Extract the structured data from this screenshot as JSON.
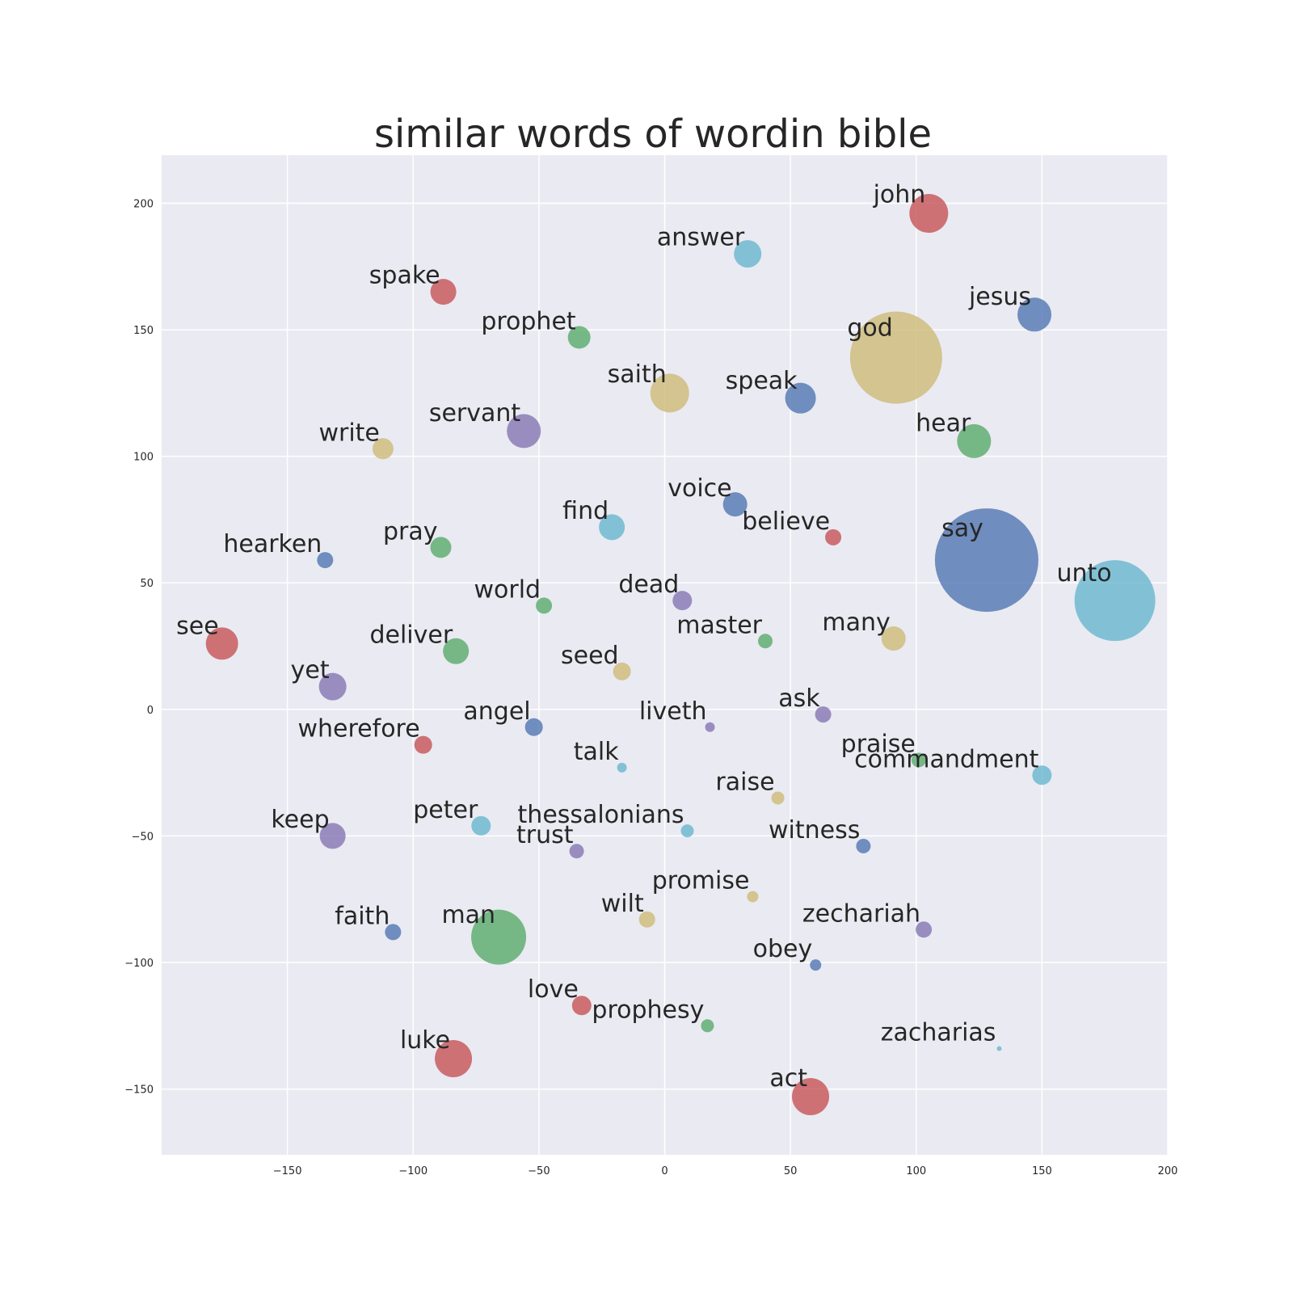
{
  "chart_data": {
    "type": "scatter",
    "title": "similar words of wordin bible",
    "xlabel": "",
    "ylabel": "",
    "xlim": [
      -200,
      200
    ],
    "ylim": [
      -176,
      219
    ],
    "xticks": [
      -150,
      -100,
      -50,
      0,
      50,
      100,
      150,
      200
    ],
    "yticks": [
      -150,
      -100,
      -50,
      0,
      50,
      100,
      150,
      200
    ],
    "xtick_labels": [
      "−150",
      "−100",
      "−50",
      "0",
      "50",
      "100",
      "150",
      "200"
    ],
    "ytick_labels": [
      "−150",
      "−100",
      "−50",
      "0",
      "50",
      "100",
      "150",
      "200"
    ],
    "grid": true,
    "background": "#eaeaf2",
    "palette": {
      "blue": "#4c72b0",
      "green": "#55a868",
      "red": "#c44e52",
      "purple": "#8172b2",
      "gold": "#ccb974",
      "cyan": "#64b5cd"
    },
    "size_unit": "relative marker radius",
    "points": [
      {
        "word": "john",
        "x": 105,
        "y": 196,
        "size": 24,
        "color": "red"
      },
      {
        "word": "answer",
        "x": 33,
        "y": 180,
        "size": 17,
        "color": "cyan"
      },
      {
        "word": "spake",
        "x": -88,
        "y": 165,
        "size": 16,
        "color": "red"
      },
      {
        "word": "jesus",
        "x": 147,
        "y": 156,
        "size": 21,
        "color": "blue"
      },
      {
        "word": "prophet",
        "x": -34,
        "y": 147,
        "size": 14,
        "color": "green"
      },
      {
        "word": "god",
        "x": 92,
        "y": 139,
        "size": 57,
        "color": "gold"
      },
      {
        "word": "saith",
        "x": 2,
        "y": 125,
        "size": 24,
        "color": "gold"
      },
      {
        "word": "speak",
        "x": 54,
        "y": 123,
        "size": 19,
        "color": "blue"
      },
      {
        "word": "servant",
        "x": -56,
        "y": 110,
        "size": 21,
        "color": "purple"
      },
      {
        "word": "hear",
        "x": 123,
        "y": 106,
        "size": 21,
        "color": "green"
      },
      {
        "word": "write",
        "x": -112,
        "y": 103,
        "size": 13,
        "color": "gold"
      },
      {
        "word": "voice",
        "x": 28,
        "y": 81,
        "size": 15,
        "color": "blue"
      },
      {
        "word": "find",
        "x": -21,
        "y": 72,
        "size": 16,
        "color": "cyan"
      },
      {
        "word": "believe",
        "x": 67,
        "y": 68,
        "size": 10,
        "color": "red"
      },
      {
        "word": "pray",
        "x": -89,
        "y": 64,
        "size": 13,
        "color": "green"
      },
      {
        "word": "hearken",
        "x": -135,
        "y": 59,
        "size": 10,
        "color": "blue"
      },
      {
        "word": "say",
        "x": 128,
        "y": 59,
        "size": 64,
        "color": "blue"
      },
      {
        "word": "unto",
        "x": 179,
        "y": 43,
        "size": 50,
        "color": "cyan"
      },
      {
        "word": "dead",
        "x": 7,
        "y": 43,
        "size": 12,
        "color": "purple"
      },
      {
        "word": "world",
        "x": -48,
        "y": 41,
        "size": 10,
        "color": "green"
      },
      {
        "word": "master",
        "x": 40,
        "y": 27,
        "size": 9,
        "color": "green"
      },
      {
        "word": "many",
        "x": 91,
        "y": 28,
        "size": 15,
        "color": "gold"
      },
      {
        "word": "see",
        "x": -176,
        "y": 26,
        "size": 20,
        "color": "red"
      },
      {
        "word": "deliver",
        "x": -83,
        "y": 23,
        "size": 16,
        "color": "green"
      },
      {
        "word": "seed",
        "x": -17,
        "y": 15,
        "size": 11,
        "color": "gold"
      },
      {
        "word": "yet",
        "x": -132,
        "y": 9,
        "size": 17,
        "color": "purple"
      },
      {
        "word": "ask",
        "x": 63,
        "y": -2,
        "size": 10,
        "color": "purple"
      },
      {
        "word": "angel",
        "x": -52,
        "y": -7,
        "size": 11,
        "color": "blue"
      },
      {
        "word": "liveth",
        "x": 18,
        "y": -7,
        "size": 6,
        "color": "purple"
      },
      {
        "word": "wherefore",
        "x": -96,
        "y": -14,
        "size": 11,
        "color": "red"
      },
      {
        "word": "praise",
        "x": 101,
        "y": -20,
        "size": 9,
        "color": "green"
      },
      {
        "word": "commandment",
        "x": 150,
        "y": -26,
        "size": 12,
        "color": "cyan"
      },
      {
        "word": "talk",
        "x": -17,
        "y": -23,
        "size": 6,
        "color": "cyan"
      },
      {
        "word": "raise",
        "x": 45,
        "y": -35,
        "size": 8,
        "color": "gold"
      },
      {
        "word": "peter",
        "x": -73,
        "y": -46,
        "size": 12,
        "color": "cyan"
      },
      {
        "word": "thessalonians",
        "x": 9,
        "y": -48,
        "size": 8,
        "color": "cyan"
      },
      {
        "word": "keep",
        "x": -132,
        "y": -50,
        "size": 16,
        "color": "purple"
      },
      {
        "word": "witness",
        "x": 79,
        "y": -54,
        "size": 9,
        "color": "blue"
      },
      {
        "word": "trust",
        "x": -35,
        "y": -56,
        "size": 9,
        "color": "purple"
      },
      {
        "word": "promise",
        "x": 35,
        "y": -74,
        "size": 7,
        "color": "gold"
      },
      {
        "word": "wilt",
        "x": -7,
        "y": -83,
        "size": 10,
        "color": "gold"
      },
      {
        "word": "zechariah",
        "x": 103,
        "y": -87,
        "size": 10,
        "color": "purple"
      },
      {
        "word": "faith",
        "x": -108,
        "y": -88,
        "size": 10,
        "color": "blue"
      },
      {
        "word": "man",
        "x": -66,
        "y": -90,
        "size": 34,
        "color": "green"
      },
      {
        "word": "obey",
        "x": 60,
        "y": -101,
        "size": 7,
        "color": "blue"
      },
      {
        "word": "love",
        "x": -33,
        "y": -117,
        "size": 12,
        "color": "red"
      },
      {
        "word": "prophesy",
        "x": 17,
        "y": -125,
        "size": 8,
        "color": "green"
      },
      {
        "word": "zacharias",
        "x": 133,
        "y": -134,
        "size": 3,
        "color": "cyan"
      },
      {
        "word": "luke",
        "x": -84,
        "y": -138,
        "size": 23,
        "color": "red"
      },
      {
        "word": "act",
        "x": 58,
        "y": -153,
        "size": 23,
        "color": "red"
      }
    ]
  }
}
